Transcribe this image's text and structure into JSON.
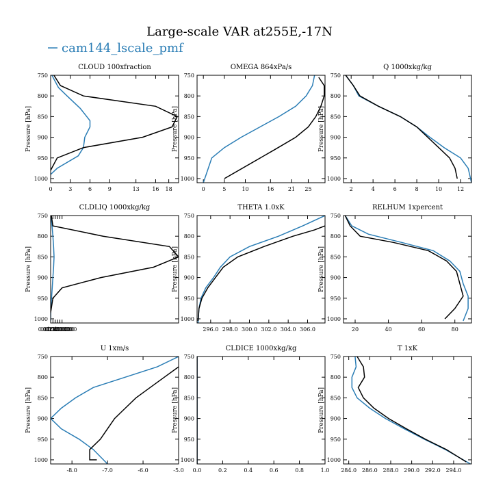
{
  "figure": {
    "title": "Large-scale VAR at255E,-17N",
    "legend": {
      "placement": "top-left",
      "entries": [
        {
          "label": "cam144_lscale_pmf",
          "color": "#2a7db5"
        }
      ]
    }
  },
  "colors": {
    "series_blue": "#2a7db5",
    "series_black": "#000000"
  },
  "chart_data": [
    {
      "type": "line",
      "title": "CLOUD  100xfraction",
      "ylabel": "Pressure [hPa]",
      "ylim": [
        1010,
        750
      ],
      "yticks": [
        750,
        800,
        850,
        900,
        950,
        1000
      ],
      "xlim": [
        0,
        19.5
      ],
      "xticks": [
        0,
        3,
        6,
        9,
        13,
        16,
        18
      ],
      "xticklabels": [
        "0",
        "3",
        "6",
        "9",
        "13",
        "16",
        "18"
      ],
      "series": [
        {
          "color": "#2a7db5",
          "x": [
            0.2,
            1.2,
            2.5,
            4.5,
            6,
            6,
            5.2,
            5,
            4.2,
            1,
            0
          ],
          "y": [
            750,
            780,
            800,
            830,
            860,
            875,
            900,
            925,
            945,
            975,
            990
          ]
        },
        {
          "color": "#000000",
          "x": [
            0.5,
            1.5,
            5,
            16,
            19.3,
            18.5,
            14,
            5,
            1,
            0
          ],
          "y": [
            750,
            775,
            800,
            825,
            850,
            875,
            900,
            925,
            950,
            980
          ]
        }
      ]
    },
    {
      "type": "line",
      "title": "OMEGA  864xPa/s",
      "ylabel": "Pressure [hPa]",
      "ylim": [
        1010,
        750
      ],
      "yticks": [
        750,
        800,
        850,
        900,
        950,
        1000
      ],
      "xlim": [
        -1.5,
        29
      ],
      "xticks": [
        0,
        5,
        10,
        16,
        21,
        25
      ],
      "xticklabels": [
        "0",
        "5",
        "10",
        "16",
        "21",
        "25"
      ],
      "series": [
        {
          "color": "#2a7db5",
          "x": [
            26.5,
            26,
            24.5,
            22,
            18,
            13.5,
            9,
            5,
            2,
            0
          ],
          "y": [
            750,
            775,
            800,
            825,
            850,
            875,
            900,
            925,
            950,
            1010
          ]
        },
        {
          "color": "#000000",
          "x": [
            27.5,
            28.8,
            28.8,
            28,
            26.8,
            25,
            22,
            17,
            5
          ],
          "y": [
            755,
            775,
            800,
            825,
            850,
            875,
            900,
            930,
            1000
          ]
        }
      ]
    },
    {
      "type": "line",
      "title": "Q  1000xkg/kg",
      "ylabel": "Pressure [hPa]",
      "ylim": [
        1010,
        750
      ],
      "yticks": [
        750,
        800,
        850,
        900,
        950,
        1000
      ],
      "xlim": [
        1.3,
        13
      ],
      "xticks": [
        2,
        4,
        6,
        8,
        10,
        12
      ],
      "xticklabels": [
        "2",
        "4",
        "6",
        "8",
        "10",
        "12"
      ],
      "series": [
        {
          "color": "#2a7db5",
          "x": [
            1.5,
            2.2,
            2.7,
            4.5,
            6.5,
            8,
            9.2,
            10.5,
            12,
            12.7,
            13
          ],
          "y": [
            750,
            775,
            800,
            825,
            850,
            875,
            900,
            925,
            950,
            975,
            1010
          ]
        },
        {
          "color": "#000000",
          "x": [
            1.5,
            2.2,
            2.8,
            4.5,
            6.5,
            8,
            9,
            10,
            11,
            11.5,
            11.7
          ],
          "y": [
            750,
            775,
            800,
            825,
            850,
            875,
            900,
            925,
            950,
            975,
            1000
          ]
        }
      ]
    },
    {
      "type": "line",
      "title": "CLDLIQ  1000xkg/kg",
      "ylabel": "Pressure [hPa]",
      "ylim": [
        1010,
        750
      ],
      "yticks": [
        750,
        800,
        850,
        900,
        950,
        1000
      ],
      "xlim": [
        0,
        0.56
      ],
      "xticks": [
        0.01,
        0.02,
        0.03,
        0.04,
        0.05
      ],
      "xticklabels": [
        "0.0100000",
        "0.0200000",
        "0.0300000",
        "0.0400000",
        "0.0500000"
      ],
      "series": [
        {
          "color": "#2a7db5",
          "x": [
            0.001,
            0.006,
            0.01,
            0.013,
            0.015,
            0.013,
            0.01,
            0.007,
            0.004,
            0.001,
            0
          ],
          "y": [
            750,
            775,
            800,
            825,
            850,
            875,
            900,
            925,
            950,
            975,
            1005
          ]
        },
        {
          "color": "#000000",
          "x": [
            0.003,
            0.01,
            0.23,
            0.52,
            0.56,
            0.45,
            0.22,
            0.05,
            0.01,
            0
          ],
          "y": [
            750,
            775,
            800,
            825,
            850,
            875,
            900,
            925,
            950,
            985
          ]
        }
      ]
    },
    {
      "type": "line",
      "title": "THETA  1.0xK",
      "ylabel": "Pressure [hPa]",
      "ylim": [
        1010,
        750
      ],
      "yticks": [
        750,
        800,
        850,
        900,
        950,
        1000
      ],
      "xlim": [
        294.6,
        307.8
      ],
      "xticks": [
        296,
        298,
        300,
        302,
        304,
        306
      ],
      "xticklabels": [
        "296.0",
        "298.0",
        "300.0",
        "302.0",
        "304.0",
        "306.0"
      ],
      "series": [
        {
          "color": "#2a7db5",
          "x": [
            307.8,
            305.5,
            303,
            300,
            298,
            297,
            296.3,
            295.5,
            295,
            294.8,
            294.7
          ],
          "y": [
            750,
            775,
            800,
            825,
            850,
            875,
            900,
            925,
            950,
            975,
            1010
          ]
        },
        {
          "color": "#000000",
          "x": [
            307.8,
            306.7,
            304.5,
            301.5,
            298.8,
            297.3,
            296.5,
            295.7,
            295.1,
            294.8,
            294.7
          ],
          "y": [
            775,
            785,
            800,
            825,
            850,
            875,
            900,
            925,
            950,
            975,
            1005
          ]
        }
      ]
    },
    {
      "type": "line",
      "title": "RELHUM  1xpercent",
      "ylabel": "Pressure [hPa]",
      "ylim": [
        1010,
        750
      ],
      "yticks": [
        750,
        800,
        850,
        900,
        950,
        1000
      ],
      "xlim": [
        13,
        90
      ],
      "xticks": [
        20,
        40,
        60,
        80
      ],
      "xticklabels": [
        "20",
        "40",
        "60",
        "80"
      ],
      "series": [
        {
          "color": "#2a7db5",
          "x": [
            14,
            18,
            28,
            48,
            67,
            77,
            83,
            85,
            88,
            88,
            85
          ],
          "y": [
            750,
            775,
            795,
            815,
            835,
            860,
            885,
            915,
            945,
            975,
            1005
          ]
        },
        {
          "color": "#000000",
          "x": [
            14,
            17,
            23,
            43,
            64,
            75,
            81,
            83,
            85,
            80,
            74
          ],
          "y": [
            750,
            775,
            800,
            815,
            835,
            860,
            885,
            915,
            945,
            975,
            1000
          ]
        }
      ]
    },
    {
      "type": "line",
      "title": "U  1xm/s",
      "ylabel": "Pressure [hPa]",
      "ylim": [
        1010,
        750
      ],
      "yticks": [
        750,
        800,
        850,
        900,
        950,
        1000
      ],
      "xlim": [
        -8.6,
        -5.0
      ],
      "xticks": [
        -8,
        -7,
        -6,
        -5
      ],
      "xticklabels": [
        "-8.0",
        "-7.0",
        "-6.0",
        "-5.0"
      ],
      "series": [
        {
          "color": "#2a7db5",
          "x": [
            -5,
            -5.6,
            -6.5,
            -7.4,
            -7.9,
            -8.3,
            -8.6,
            -8.3,
            -7.8,
            -7.4,
            -7
          ],
          "y": [
            750,
            775,
            800,
            825,
            850,
            875,
            900,
            925,
            950,
            975,
            1010
          ]
        },
        {
          "color": "#000000",
          "x": [
            -5,
            -5.4,
            -5.8,
            -6.2,
            -6.5,
            -6.8,
            -7,
            -7.2,
            -7.5,
            -7.5,
            -7.3
          ],
          "y": [
            775,
            800,
            825,
            850,
            875,
            900,
            925,
            950,
            975,
            1000,
            1000
          ]
        }
      ]
    },
    {
      "type": "line",
      "title": "CLDICE  1000xkg/kg",
      "ylabel": "Pressure [hPa]",
      "ylim": [
        1010,
        750
      ],
      "yticks": [
        750,
        800,
        850,
        900,
        950,
        1000
      ],
      "xlim": [
        0,
        1
      ],
      "xticks": [
        0,
        0.2,
        0.4,
        0.6,
        0.8,
        1.0
      ],
      "xticklabels": [
        "0.0",
        "0.2",
        "0.4",
        "0.6",
        "0.8",
        "1.0"
      ],
      "series": [
        {
          "color": "#2a7db5",
          "x": [
            0,
            0
          ],
          "y": [
            750,
            1010
          ]
        },
        {
          "color": "#000000",
          "x": [
            0,
            0
          ],
          "y": [
            750,
            1010
          ]
        }
      ]
    },
    {
      "type": "line",
      "title": "T  1xK",
      "ylabel": "Pressure [hPa]",
      "ylim": [
        1010,
        750
      ],
      "yticks": [
        750,
        800,
        850,
        900,
        950,
        1000
      ],
      "xlim": [
        283.5,
        295.7
      ],
      "xticks": [
        284,
        286,
        288,
        290,
        292,
        294
      ],
      "xticklabels": [
        "284.0",
        "286.0",
        "288.0",
        "290.0",
        "292.0",
        "294.0"
      ],
      "series": [
        {
          "color": "#2a7db5",
          "x": [
            284.6,
            284.7,
            284.3,
            284.3,
            284.8,
            286,
            287.5,
            289.3,
            291.2,
            293.2,
            295.6
          ],
          "y": [
            750,
            775,
            800,
            825,
            850,
            875,
            900,
            925,
            950,
            975,
            1010
          ]
        },
        {
          "color": "#000000",
          "x": [
            284.8,
            285.4,
            285.5,
            284.9,
            285.4,
            286.4,
            287.8,
            289.5,
            291.3,
            293.3,
            295.2
          ],
          "y": [
            750,
            775,
            800,
            825,
            850,
            875,
            900,
            925,
            950,
            975,
            1005
          ]
        }
      ]
    }
  ]
}
